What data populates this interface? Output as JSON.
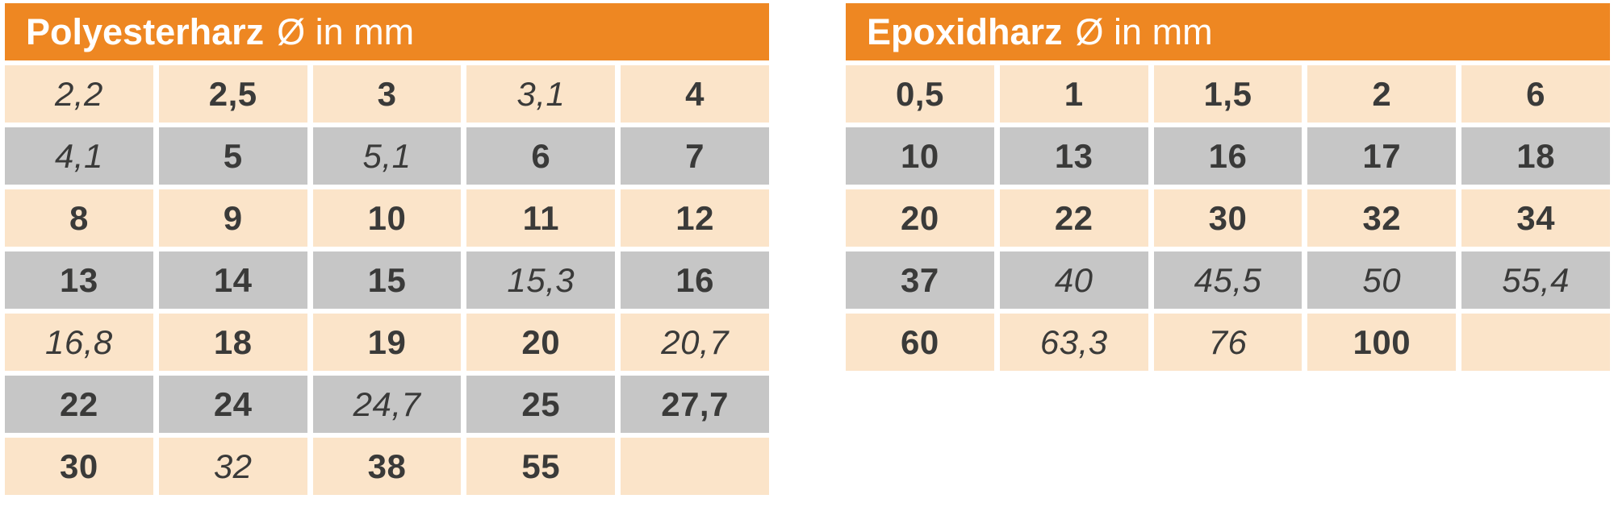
{
  "colors": {
    "header_orange": "#EE8722",
    "row_peach": "#FBE4C9",
    "row_gray": "#C6C6C6",
    "text_dark": "#3A3A39",
    "header_text": "#FFFFFF",
    "gap_white": "#FFFFFF"
  },
  "tables": [
    {
      "title": "Polyesterharz",
      "unit": "Ø in mm",
      "rows": [
        [
          {
            "value": "2,2",
            "style": "italic"
          },
          {
            "value": "2,5",
            "style": "bold"
          },
          {
            "value": "3",
            "style": "bold"
          },
          {
            "value": "3,1",
            "style": "italic"
          },
          {
            "value": "4",
            "style": "bold"
          }
        ],
        [
          {
            "value": "4,1",
            "style": "italic"
          },
          {
            "value": "5",
            "style": "bold"
          },
          {
            "value": "5,1",
            "style": "italic"
          },
          {
            "value": "6",
            "style": "bold"
          },
          {
            "value": "7",
            "style": "bold"
          }
        ],
        [
          {
            "value": "8",
            "style": "bold"
          },
          {
            "value": "9",
            "style": "bold"
          },
          {
            "value": "10",
            "style": "bold"
          },
          {
            "value": "11",
            "style": "bold"
          },
          {
            "value": "12",
            "style": "bold"
          }
        ],
        [
          {
            "value": "13",
            "style": "bold"
          },
          {
            "value": "14",
            "style": "bold"
          },
          {
            "value": "15",
            "style": "bold"
          },
          {
            "value": "15,3",
            "style": "italic"
          },
          {
            "value": "16",
            "style": "bold"
          }
        ],
        [
          {
            "value": "16,8",
            "style": "italic"
          },
          {
            "value": "18",
            "style": "bold"
          },
          {
            "value": "19",
            "style": "bold"
          },
          {
            "value": "20",
            "style": "bold"
          },
          {
            "value": "20,7",
            "style": "italic"
          }
        ],
        [
          {
            "value": "22",
            "style": "bold"
          },
          {
            "value": "24",
            "style": "bold"
          },
          {
            "value": "24,7",
            "style": "italic"
          },
          {
            "value": "25",
            "style": "bold"
          },
          {
            "value": "27,7",
            "style": "bold"
          }
        ],
        [
          {
            "value": "30",
            "style": "bold"
          },
          {
            "value": "32",
            "style": "italic"
          },
          {
            "value": "38",
            "style": "bold"
          },
          {
            "value": "55",
            "style": "bold"
          },
          {
            "value": "",
            "style": "empty"
          }
        ]
      ]
    },
    {
      "title": "Epoxidharz",
      "unit": "Ø in mm",
      "rows": [
        [
          {
            "value": "0,5",
            "style": "bold"
          },
          {
            "value": "1",
            "style": "bold"
          },
          {
            "value": "1,5",
            "style": "bold"
          },
          {
            "value": "2",
            "style": "bold"
          },
          {
            "value": "6",
            "style": "bold"
          }
        ],
        [
          {
            "value": "10",
            "style": "bold"
          },
          {
            "value": "13",
            "style": "bold"
          },
          {
            "value": "16",
            "style": "bold"
          },
          {
            "value": "17",
            "style": "bold"
          },
          {
            "value": "18",
            "style": "bold"
          }
        ],
        [
          {
            "value": "20",
            "style": "bold"
          },
          {
            "value": "22",
            "style": "bold"
          },
          {
            "value": "30",
            "style": "bold"
          },
          {
            "value": "32",
            "style": "bold"
          },
          {
            "value": "34",
            "style": "bold"
          }
        ],
        [
          {
            "value": "37",
            "style": "bold"
          },
          {
            "value": "40",
            "style": "italic"
          },
          {
            "value": "45,5",
            "style": "italic"
          },
          {
            "value": "50",
            "style": "italic"
          },
          {
            "value": "55,4",
            "style": "italic"
          }
        ],
        [
          {
            "value": "60",
            "style": "bold"
          },
          {
            "value": "63,3",
            "style": "italic"
          },
          {
            "value": "76",
            "style": "italic"
          },
          {
            "value": "100",
            "style": "bold"
          },
          {
            "value": "",
            "style": "empty"
          }
        ]
      ]
    }
  ]
}
